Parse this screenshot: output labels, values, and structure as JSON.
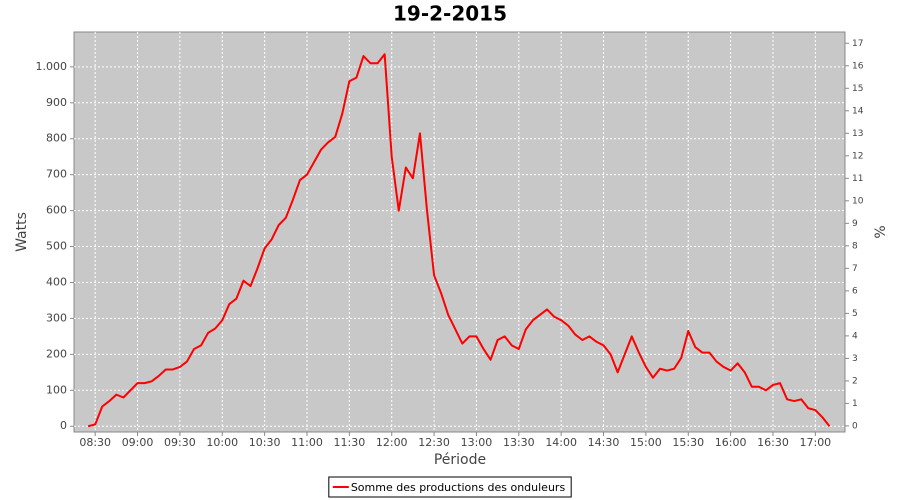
{
  "chart_data": {
    "type": "line",
    "title": "19-2-2015",
    "x_label": "Période",
    "y_label": "Watts",
    "y2_label": "%",
    "xlim": [
      "08:15",
      "17:21"
    ],
    "xticks": [
      "08:30",
      "09:00",
      "09:30",
      "10:00",
      "10:30",
      "11:00",
      "11:30",
      "12:00",
      "12:30",
      "13:00",
      "13:30",
      "14:00",
      "14:30",
      "15:00",
      "15:30",
      "16:00",
      "16:30",
      "17:00"
    ],
    "ylim": [
      -16,
      1097
    ],
    "yticks": [
      0,
      100,
      200,
      300,
      400,
      500,
      600,
      700,
      800,
      900,
      {
        "value": 1000,
        "label": "1.000"
      }
    ],
    "y2lim": [
      -0.27,
      17.5
    ],
    "y2ticks": [
      0,
      1,
      2,
      3,
      4,
      5,
      6,
      7,
      8,
      9,
      10,
      11,
      12,
      13,
      14,
      15,
      16,
      17
    ],
    "grid": true,
    "legend": "bottom",
    "x": [
      "08:25",
      "08:30",
      "08:35",
      "08:40",
      "08:45",
      "08:50",
      "08:55",
      "09:00",
      "09:05",
      "09:10",
      "09:15",
      "09:20",
      "09:25",
      "09:30",
      "09:35",
      "09:40",
      "09:45",
      "09:50",
      "09:55",
      "10:00",
      "10:05",
      "10:10",
      "10:15",
      "10:20",
      "10:25",
      "10:30",
      "10:35",
      "10:40",
      "10:45",
      "10:50",
      "10:55",
      "11:00",
      "11:05",
      "11:10",
      "11:15",
      "11:20",
      "11:25",
      "11:30",
      "11:35",
      "11:40",
      "11:45",
      "11:50",
      "11:55",
      "12:00",
      "12:05",
      "12:10",
      "12:15",
      "12:20",
      "12:25",
      "12:30",
      "12:35",
      "12:40",
      "12:45",
      "12:50",
      "12:55",
      "13:00",
      "13:05",
      "13:10",
      "13:15",
      "13:20",
      "13:25",
      "13:30",
      "13:35",
      "13:40",
      "13:45",
      "13:50",
      "13:55",
      "14:00",
      "14:05",
      "14:10",
      "14:15",
      "14:20",
      "14:25",
      "14:30",
      "14:35",
      "14:40",
      "14:45",
      "14:50",
      "14:55",
      "15:00",
      "15:05",
      "15:10",
      "15:15",
      "15:20",
      "15:25",
      "15:30",
      "15:35",
      "15:40",
      "15:45",
      "15:50",
      "15:55",
      "16:00",
      "16:05",
      "16:10",
      "16:15",
      "16:20",
      "16:25",
      "16:30",
      "16:35",
      "16:40",
      "16:45",
      "16:50",
      "16:55",
      "17:00",
      "17:05",
      "17:10"
    ],
    "series": [
      {
        "name": "Somme des productions des onduleurs",
        "color": "#ff0000",
        "values": [
          0,
          5,
          55,
          70,
          88,
          80,
          100,
          120,
          120,
          125,
          140,
          158,
          158,
          165,
          180,
          215,
          225,
          260,
          272,
          295,
          340,
          355,
          405,
          390,
          440,
          495,
          520,
          560,
          580,
          630,
          685,
          700,
          735,
          770,
          790,
          805,
          870,
          960,
          970,
          1030,
          1010,
          1010,
          1035,
          750,
          600,
          720,
          690,
          815,
          600,
          420,
          370,
          310,
          270,
          230,
          250,
          250,
          215,
          185,
          240,
          250,
          225,
          215,
          270,
          295,
          310,
          325,
          305,
          295,
          280,
          255,
          240,
          250,
          235,
          225,
          200,
          150,
          200,
          250,
          205,
          165,
          135,
          160,
          155,
          160,
          190,
          265,
          220,
          205,
          205,
          180,
          165,
          155,
          175,
          150,
          110,
          110,
          100,
          115,
          120,
          75,
          70,
          75,
          50,
          45,
          25,
          0
        ]
      }
    ]
  }
}
